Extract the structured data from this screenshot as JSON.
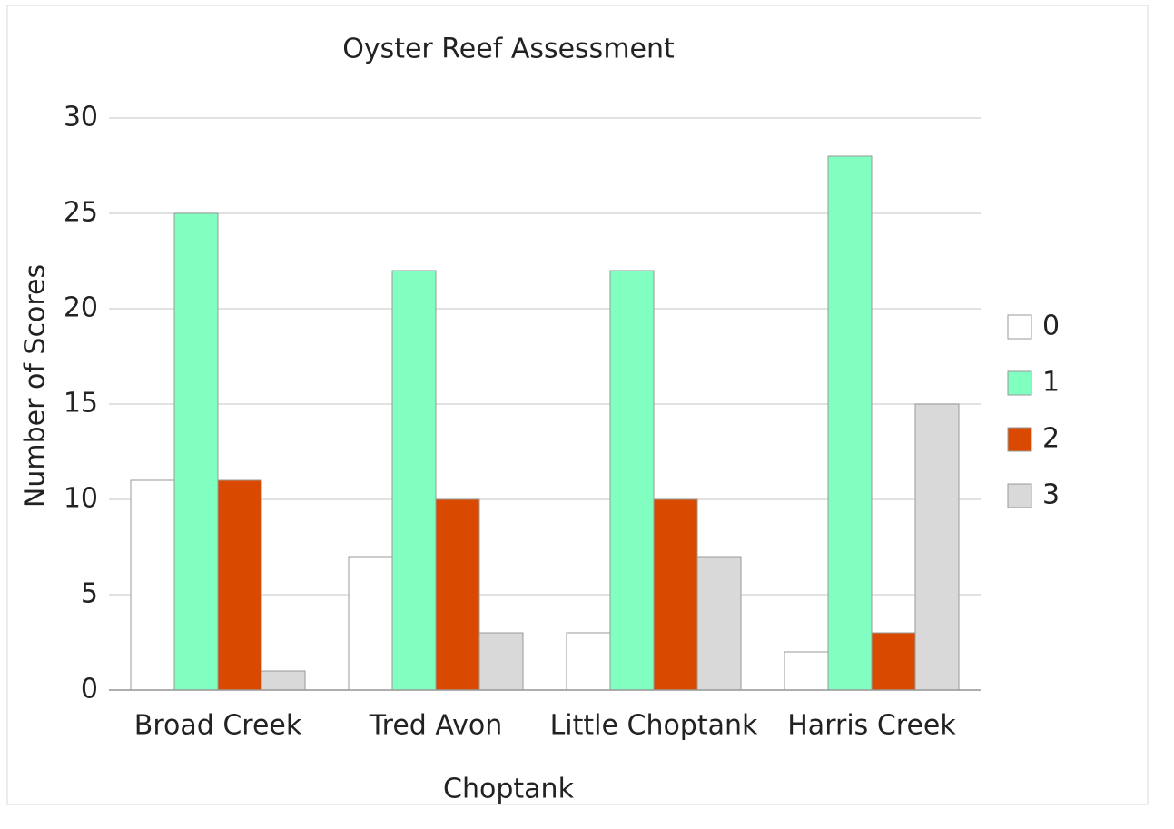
{
  "chart_data": {
    "type": "bar",
    "title": "Oyster Reef Assessment",
    "x_label": "Choptank",
    "y_label": "Number of Scores",
    "categories": [
      "Broad Creek",
      "Tred Avon",
      "Little Choptank",
      "Harris Creek"
    ],
    "series": [
      {
        "name": "0",
        "color": "#ffffff",
        "values": [
          11,
          7,
          3,
          2
        ]
      },
      {
        "name": "1",
        "color": "#80ffc0",
        "values": [
          25,
          22,
          22,
          28
        ]
      },
      {
        "name": "2",
        "color": "#d94a00",
        "values": [
          11,
          10,
          10,
          3
        ]
      },
      {
        "name": "3",
        "color": "#d9d9d9",
        "values": [
          1,
          3,
          7,
          15
        ]
      }
    ],
    "ylim": [
      0,
      30
    ],
    "yticks": [
      0,
      5,
      10,
      15,
      20,
      25,
      30
    ],
    "grid": true,
    "legend": "right"
  }
}
